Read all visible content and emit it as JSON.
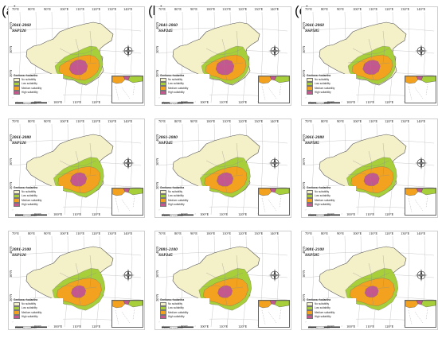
{
  "panel_labels": [
    "(a)",
    "(b)",
    "(c)"
  ],
  "columns": [
    {
      "scenario": "SSP126"
    },
    {
      "scenario": "SSP245"
    },
    {
      "scenario": "SSP585"
    }
  ],
  "rows": [
    {
      "period": "2041-2060"
    },
    {
      "period": "2061-2080"
    },
    {
      "period": "2081-2100"
    }
  ],
  "top_ticks": [
    "70°E",
    "80°E",
    "90°E",
    "100°E",
    "110°E",
    "120°E",
    "130°E",
    "140°E"
  ],
  "bottom_ticks": [
    "90°E",
    "100°E",
    "110°E",
    "120°E",
    "130°E"
  ],
  "left_ticks": [
    "40°N",
    "30°N",
    "20°N"
  ],
  "legend": {
    "title": "Gentiana rhodantha",
    "items": [
      {
        "label": "No suitability",
        "color": "#f4f1c9"
      },
      {
        "label": "Low suitability",
        "color": "#a6cf3a"
      },
      {
        "label": "Medium suitability",
        "color": "#f2a21e"
      },
      {
        "label": "High suitability",
        "color": "#c4578e"
      }
    ]
  },
  "scale_text": "0  265  530        1,060 Km",
  "colors": {
    "land": "#f4f1c9",
    "low": "#a6cf3a",
    "medium": "#f2a21e",
    "high": "#c4578e",
    "border": "#555555",
    "sea": "#ffffff"
  }
}
